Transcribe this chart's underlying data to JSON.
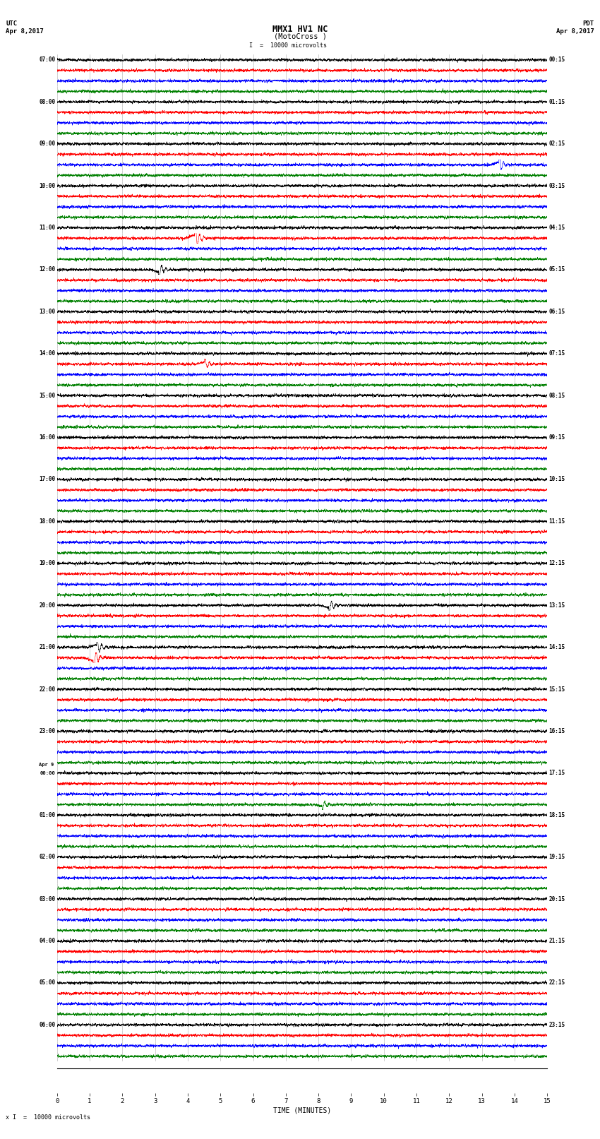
{
  "title_line1": "MMX1 HV1 NC",
  "title_line2": "(MotoCross )",
  "left_label_top": "UTC",
  "left_label_bot": "Apr 8,2017",
  "right_label_top": "PDT",
  "right_label_bot": "Apr 8,2017",
  "scale_label": "I  =  10000 microvolts",
  "xlabel": "TIME (MINUTES)",
  "bottom_label": "x I  =  10000 microvolts",
  "xmin": 0,
  "xmax": 15,
  "xticks": [
    0,
    1,
    2,
    3,
    4,
    5,
    6,
    7,
    8,
    9,
    10,
    11,
    12,
    13,
    14,
    15
  ],
  "channel_colors": [
    "black",
    "red",
    "blue",
    "green"
  ],
  "bg_color": "white",
  "rows": [
    {
      "utc": "07:00",
      "pdt": "00:15"
    },
    {
      "utc": "08:00",
      "pdt": "01:15"
    },
    {
      "utc": "09:00",
      "pdt": "02:15"
    },
    {
      "utc": "10:00",
      "pdt": "03:15"
    },
    {
      "utc": "11:00",
      "pdt": "04:15"
    },
    {
      "utc": "12:00",
      "pdt": "05:15"
    },
    {
      "utc": "13:00",
      "pdt": "06:15"
    },
    {
      "utc": "14:00",
      "pdt": "07:15"
    },
    {
      "utc": "15:00",
      "pdt": "08:15"
    },
    {
      "utc": "16:00",
      "pdt": "09:15"
    },
    {
      "utc": "17:00",
      "pdt": "10:15"
    },
    {
      "utc": "18:00",
      "pdt": "11:15"
    },
    {
      "utc": "19:00",
      "pdt": "12:15"
    },
    {
      "utc": "20:00",
      "pdt": "13:15"
    },
    {
      "utc": "21:00",
      "pdt": "14:15"
    },
    {
      "utc": "22:00",
      "pdt": "15:15"
    },
    {
      "utc": "23:00",
      "pdt": "16:15"
    },
    {
      "utc": "Apr 9\n00:00",
      "pdt": "17:15"
    },
    {
      "utc": "01:00",
      "pdt": "18:15"
    },
    {
      "utc": "02:00",
      "pdt": "19:15"
    },
    {
      "utc": "03:00",
      "pdt": "20:15"
    },
    {
      "utc": "04:00",
      "pdt": "21:15"
    },
    {
      "utc": "05:00",
      "pdt": "22:15"
    },
    {
      "utc": "06:00",
      "pdt": "23:15"
    }
  ],
  "grid_color": "#888888",
  "grid_lw": 0.4,
  "trace_lw": 0.4,
  "noise_base": 0.12,
  "spike_rows": {
    "4_1": {
      "t": 4.2,
      "amp": 2.5
    },
    "5_0": {
      "t": 3.1,
      "amp": -1.8
    },
    "7_1": {
      "t": 4.5,
      "amp": 1.2
    },
    "13_0": {
      "t": 8.3,
      "amp": -1.5
    },
    "14_0": {
      "t": 1.2,
      "amp": 2.0
    },
    "14_1": {
      "t": 1.1,
      "amp": -2.2
    },
    "2_2": {
      "t": 13.5,
      "amp": 1.8
    },
    "17_3": {
      "t": 8.1,
      "amp": -1.2
    }
  }
}
